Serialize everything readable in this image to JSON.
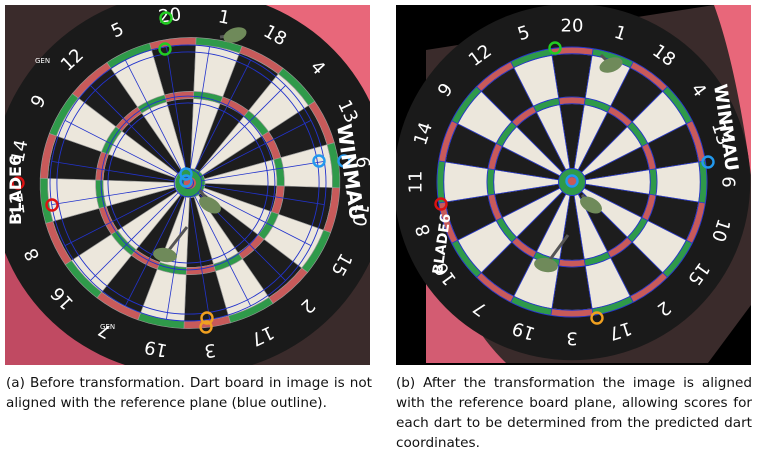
{
  "captions": {
    "a": "(a) Before transformation. Dart board in image is not aligned with the reference plane (blue outline).",
    "b": "(b) After the transformation the image is aligned with the reference board plane, allowing scores for each dart to be determined from the predicted dart coordinates."
  },
  "board_numbers": [
    "20",
    "1",
    "18",
    "4",
    "13",
    "6",
    "10",
    "15",
    "2",
    "17",
    "3",
    "19",
    "7",
    "16",
    "8",
    "11",
    "14",
    "9",
    "12",
    "5"
  ],
  "board_text": {
    "brand": "WINMAU",
    "series": "BLADE6",
    "badge": "GEN"
  },
  "colors": {
    "surround": "#e8677a",
    "frame": "#3a2b2b",
    "black_segment": "#1d1d1d",
    "cream_segment": "#ece7dc",
    "red_ring": "#c85a5a",
    "green_ring": "#2f9a4a",
    "reference_outline": "#2233cc",
    "keypoint_green": "#22cc22",
    "keypoint_blue": "#2299ee",
    "keypoint_red": "#dd1111",
    "keypoint_orange": "#f0a020"
  }
}
